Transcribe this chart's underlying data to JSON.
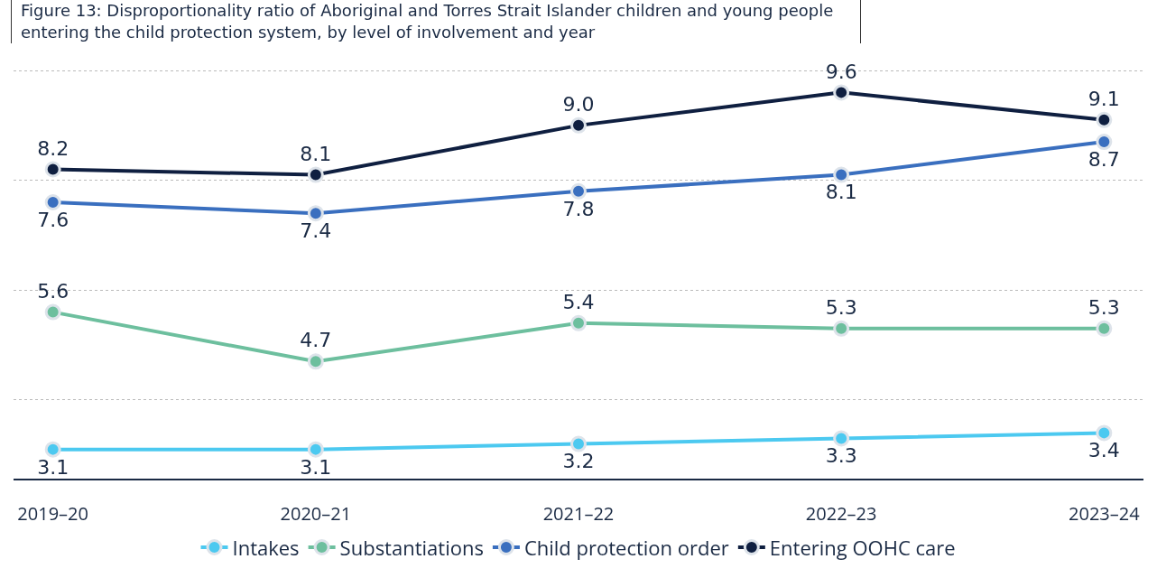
{
  "chart_data": {
    "type": "line",
    "title": "Figure 13: Disproportionality ratio of Aboriginal and Torres Strait Islander children and young people entering the child protection system, by level of involvement and year",
    "categories": [
      "2019–20",
      "2020–21",
      "2021–22",
      "2022–23",
      "2023–24"
    ],
    "series": [
      {
        "name": "Intakes",
        "color": "#4cc9f0",
        "values": [
          3.1,
          3.1,
          3.2,
          3.3,
          3.4
        ],
        "value_labels": [
          "3.1",
          "3.1",
          "3.2",
          "3.3",
          "3.4"
        ]
      },
      {
        "name": "Substantiations",
        "color": "#6dbf9e",
        "values": [
          5.6,
          4.7,
          5.4,
          5.3,
          5.3
        ],
        "value_labels": [
          "5.6",
          "4.7",
          "5.4",
          "5.3",
          "5.3"
        ]
      },
      {
        "name": "Child protection order",
        "color": "#3a6fbf",
        "values": [
          7.6,
          7.4,
          7.8,
          8.1,
          8.7
        ],
        "value_labels": [
          "7.6",
          "7.4",
          "7.8",
          "8.1",
          "8.7"
        ]
      },
      {
        "name": "Entering OOHC care",
        "color": "#0f1f40",
        "values": [
          8.2,
          8.1,
          9.0,
          9.6,
          9.1
        ],
        "value_labels": [
          "8.2",
          "8.1",
          "9.0",
          "9.6",
          "9.1"
        ]
      }
    ],
    "grid": "y",
    "tick_labels": "x",
    "legend": "bottom",
    "marker": "circle",
    "line_style": "solid"
  }
}
